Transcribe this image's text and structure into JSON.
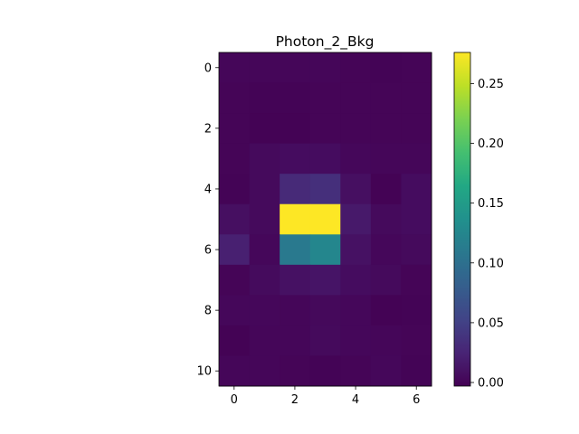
{
  "chart_data": {
    "type": "heatmap",
    "title": "Photon_2_Bkg",
    "xlabel": "",
    "ylabel": "",
    "colormap": "viridis",
    "grid": false,
    "x_range": [
      -0.5,
      6.5
    ],
    "y_range": [
      -0.5,
      10.5
    ],
    "x_ticks": [
      0,
      2,
      4,
      6
    ],
    "y_ticks": [
      0,
      2,
      4,
      6,
      8,
      10
    ],
    "colorbar": {
      "min": -0.003,
      "max": 0.276,
      "ticks": [
        0.0,
        0.05,
        0.1,
        0.15,
        0.2,
        0.25
      ],
      "tick_labels": [
        "0.00",
        "0.05",
        "0.10",
        "0.15",
        "0.20",
        "0.25"
      ]
    },
    "z": [
      [
        0.001,
        0.001,
        0.001,
        0.001,
        0.0,
        -0.001,
        0.0
      ],
      [
        0.0,
        -0.001,
        -0.001,
        0.0,
        0.0,
        0.0,
        0.0
      ],
      [
        0.0,
        -0.002,
        -0.002,
        0.0,
        0.0,
        0.0,
        0.0
      ],
      [
        0.0,
        0.004,
        0.006,
        0.006,
        0.002,
        0.001,
        0.001
      ],
      [
        -0.001,
        0.004,
        0.03,
        0.035,
        0.008,
        -0.002,
        0.006
      ],
      [
        0.008,
        0.004,
        0.276,
        0.276,
        0.016,
        0.004,
        0.006
      ],
      [
        0.022,
        0.002,
        0.11,
        0.125,
        0.01,
        0.002,
        0.004
      ],
      [
        0.0,
        0.005,
        0.01,
        0.012,
        0.006,
        0.004,
        0.0
      ],
      [
        0.002,
        0.002,
        0.001,
        0.003,
        0.002,
        -0.002,
        -0.001
      ],
      [
        -0.002,
        0.001,
        0.001,
        0.004,
        0.002,
        0.001,
        0.0
      ],
      [
        0.001,
        0.001,
        0.0,
        -0.001,
        0.0,
        0.002,
        -0.001
      ]
    ]
  }
}
